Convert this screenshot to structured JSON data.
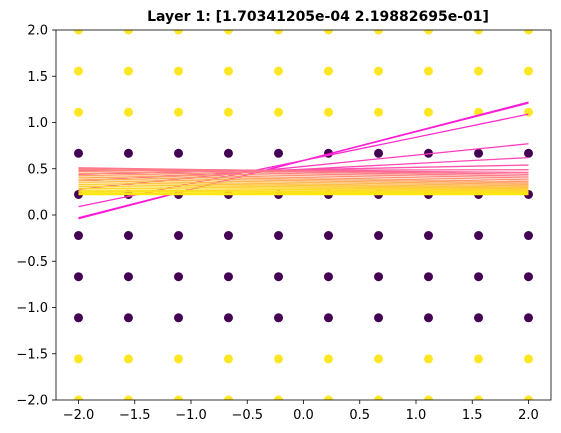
{
  "chart_data": {
    "type": "scatter",
    "title": "Layer 1: [1.70341205e-04 2.19882695e-01]",
    "xlabel": "",
    "ylabel": "",
    "xlim": [
      -2.2,
      2.2
    ],
    "ylim": [
      -2.0,
      2.0
    ],
    "x_ticks": [
      -2.0,
      -1.5,
      -1.0,
      -0.5,
      0.0,
      0.5,
      1.0,
      1.5,
      2.0
    ],
    "y_ticks": [
      -2.0,
      -1.5,
      -1.0,
      -0.5,
      0.0,
      0.5,
      1.0,
      1.5,
      2.0
    ],
    "x_tick_labels": [
      "−2.0",
      "−1.5",
      "−1.0",
      "−0.5",
      "0.0",
      "0.5",
      "1.0",
      "1.5",
      "2.0"
    ],
    "y_tick_labels": [
      "−2.0",
      "−1.5",
      "−1.0",
      "−0.5",
      "0.0",
      "0.5",
      "1.0",
      "1.5",
      "2.0"
    ],
    "grid": false,
    "colors": {
      "class_yellow": "#fde725",
      "class_purple": "#440154"
    },
    "points": {
      "x": [
        -2.0,
        -1.556,
        -1.111,
        -0.667,
        -0.222,
        0.222,
        0.667,
        1.111,
        1.556,
        2.0
      ],
      "y": [
        -2.0,
        -1.556,
        -1.111,
        -0.667,
        -0.222,
        0.222,
        0.667,
        1.111,
        1.556,
        2.0
      ],
      "yellow_rows": [
        -2.0,
        -1.556,
        1.111,
        1.556,
        2.0
      ],
      "purple_rows": [
        -1.111,
        -0.667,
        -0.222,
        0.222,
        0.667
      ]
    },
    "boundary_lines": [
      {
        "y0": -0.04,
        "y1": 1.22,
        "color": "#ff1ad6"
      },
      {
        "y0": -0.03,
        "y1": 1.21,
        "color": "#ff1ad6"
      },
      {
        "y0": 0.09,
        "y1": 1.09,
        "color": "#ff2ccc"
      },
      {
        "y0": 0.28,
        "y1": 0.77,
        "color": "#ff3cbe"
      },
      {
        "y0": 0.37,
        "y1": 0.62,
        "color": "#ff48b4"
      },
      {
        "y0": 0.44,
        "y1": 0.54,
        "color": "#ff54a8"
      },
      {
        "y0": 0.48,
        "y1": 0.49,
        "color": "#ff5ea0"
      },
      {
        "y0": 0.5,
        "y1": 0.46,
        "color": "#ff6898"
      },
      {
        "y0": 0.51,
        "y1": 0.44,
        "color": "#ff728f"
      },
      {
        "y0": 0.505,
        "y1": 0.42,
        "color": "#ff7c86"
      },
      {
        "y0": 0.49,
        "y1": 0.4,
        "color": "#ff867d"
      },
      {
        "y0": 0.47,
        "y1": 0.38,
        "color": "#ff9074"
      },
      {
        "y0": 0.45,
        "y1": 0.36,
        "color": "#ff9a6c"
      },
      {
        "y0": 0.43,
        "y1": 0.345,
        "color": "#ffa463"
      },
      {
        "y0": 0.41,
        "y1": 0.33,
        "color": "#ffad5a"
      },
      {
        "y0": 0.39,
        "y1": 0.315,
        "color": "#ffb652"
      },
      {
        "y0": 0.37,
        "y1": 0.3,
        "color": "#ffbe49"
      },
      {
        "y0": 0.35,
        "y1": 0.29,
        "color": "#ffc641"
      },
      {
        "y0": 0.33,
        "y1": 0.28,
        "color": "#ffcd39"
      },
      {
        "y0": 0.31,
        "y1": 0.27,
        "color": "#ffd331"
      },
      {
        "y0": 0.29,
        "y1": 0.26,
        "color": "#ffd82a"
      },
      {
        "y0": 0.27,
        "y1": 0.25,
        "color": "#ffdc23"
      },
      {
        "y0": 0.255,
        "y1": 0.245,
        "color": "#ffe01c"
      },
      {
        "y0": 0.24,
        "y1": 0.235,
        "color": "#ffe316"
      },
      {
        "y0": 0.23,
        "y1": 0.23,
        "color": "#ffe610"
      },
      {
        "y0": 0.22,
        "y1": 0.22,
        "color": "#ffe80a"
      }
    ],
    "boundary_x": [
      -2.0,
      2.0
    ]
  }
}
